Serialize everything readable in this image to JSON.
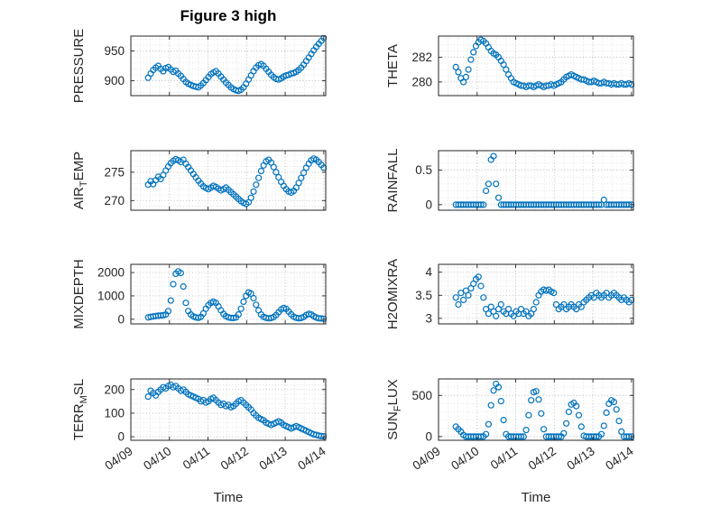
{
  "chart_data": {
    "type": "scatter",
    "title": "Figure 3 high",
    "xlabel": "Time",
    "layout": "4x2 subplots, shared time axis, grid minor on, open-circle markers",
    "marker": {
      "shape": "open-circle",
      "color": "#0072BD"
    },
    "x_unit": "days since 04/09 00:00",
    "xlim": [
      0,
      5.05
    ],
    "x_minor_step": 0.25,
    "xticks": [
      0,
      1,
      2,
      3,
      4,
      5
    ],
    "xtick_labels": [
      "04/09",
      "04/10",
      "04/11",
      "04/12",
      "04/13",
      "04/14"
    ],
    "x": [
      0.45,
      0.515,
      0.58,
      0.645,
      0.71,
      0.775,
      0.84,
      0.905,
      0.97,
      1.035,
      1.1,
      1.165,
      1.23,
      1.295,
      1.36,
      1.425,
      1.49,
      1.555,
      1.62,
      1.685,
      1.75,
      1.815,
      1.88,
      1.945,
      2.01,
      2.075,
      2.14,
      2.205,
      2.27,
      2.335,
      2.4,
      2.465,
      2.53,
      2.595,
      2.66,
      2.725,
      2.79,
      2.855,
      2.92,
      2.985,
      3.05,
      3.115,
      3.18,
      3.245,
      3.31,
      3.375,
      3.44,
      3.505,
      3.57,
      3.635,
      3.7,
      3.765,
      3.83,
      3.895,
      3.96,
      4.025,
      4.09,
      4.155,
      4.22,
      4.285,
      4.35,
      4.415,
      4.48,
      4.545,
      4.61,
      4.675,
      4.74,
      4.805,
      4.87,
      4.935,
      5.0
    ],
    "panels": [
      {
        "name": "PRESSURE",
        "ylabel": "PRESSURE",
        "ylabel_parts": [
          "PRESSURE"
        ],
        "ylim": [
          875,
          975
        ],
        "yticks": [
          900,
          950
        ],
        "ytick_labels": [
          "900",
          "950"
        ],
        "y_minor_step": 10,
        "values": [
          905,
          912,
          918,
          922,
          925,
          920,
          916,
          921,
          923,
          919,
          915,
          917,
          912,
          908,
          903,
          898,
          895,
          893,
          891,
          890,
          889,
          892,
          896,
          901,
          906,
          911,
          914,
          916,
          912,
          907,
          902,
          897,
          893,
          889,
          886,
          884,
          883,
          885,
          889,
          895,
          902,
          909,
          916,
          922,
          926,
          928,
          925,
          920,
          915,
          910,
          906,
          903,
          902,
          904,
          907,
          909,
          910,
          912,
          913,
          915,
          918,
          922,
          927,
          933,
          939,
          945,
          951,
          957,
          962,
          967,
          972
        ]
      },
      {
        "name": "THETA",
        "ylabel": "THETA",
        "ylabel_parts": [
          "THETA"
        ],
        "ylim": [
          278.9,
          283.7
        ],
        "yticks": [
          280,
          282
        ],
        "ytick_labels": [
          "280",
          "282"
        ],
        "y_minor_step": 0.5,
        "values": [
          281.2,
          280.8,
          280.3,
          280.0,
          280.4,
          281.0,
          281.8,
          282.4,
          282.9,
          283.2,
          283.4,
          283.3,
          283.1,
          282.8,
          282.5,
          282.3,
          282.2,
          282.0,
          281.7,
          281.4,
          281.0,
          280.6,
          280.3,
          280.0,
          279.9,
          279.8,
          279.7,
          279.7,
          279.6,
          279.7,
          279.7,
          279.6,
          279.7,
          279.8,
          279.7,
          279.6,
          279.7,
          279.7,
          279.8,
          279.7,
          279.8,
          279.9,
          280.0,
          280.2,
          280.4,
          280.5,
          280.6,
          280.5,
          280.4,
          280.3,
          280.2,
          280.2,
          280.1,
          280.0,
          280.0,
          280.1,
          280.0,
          279.9,
          279.9,
          280.0,
          279.9,
          279.9,
          279.8,
          279.9,
          279.8,
          279.8,
          279.9,
          279.8,
          279.8,
          279.9,
          279.8
        ]
      },
      {
        "name": "AIR_TEMP",
        "ylabel": "AIR_TEMP",
        "ylabel_parts": [
          "AIR",
          "_T",
          "EMP"
        ],
        "ylim": [
          268.3,
          278.8
        ],
        "yticks": [
          270,
          275
        ],
        "ytick_labels": [
          "270",
          "275"
        ],
        "y_minor_step": 1,
        "values": [
          272.8,
          273.4,
          272.9,
          273.6,
          274.2,
          273.8,
          274.5,
          275.3,
          276.0,
          276.6,
          277.0,
          277.3,
          277.1,
          276.8,
          277.2,
          276.5,
          275.9,
          275.3,
          274.7,
          274.1,
          273.5,
          273.0,
          272.5,
          272.2,
          272.0,
          272.3,
          272.6,
          272.4,
          272.1,
          271.8,
          272.0,
          272.3,
          271.9,
          271.5,
          271.1,
          270.7,
          270.3,
          269.9,
          269.6,
          269.4,
          269.7,
          270.5,
          271.6,
          272.8,
          274.0,
          275.2,
          276.2,
          276.9,
          277.2,
          276.7,
          275.9,
          275.0,
          274.1,
          273.3,
          272.6,
          272.0,
          271.6,
          271.4,
          271.7,
          272.3,
          273.1,
          274.0,
          274.9,
          275.8,
          276.5,
          277.1,
          277.4,
          277.2,
          276.8,
          276.3,
          275.8
        ]
      },
      {
        "name": "RAINFALL",
        "ylabel": "RAINFALL",
        "ylabel_parts": [
          "RAINFALL"
        ],
        "ylim": [
          -0.08,
          0.78
        ],
        "yticks": [
          0,
          0.5
        ],
        "ytick_labels": [
          "0",
          "0.5"
        ],
        "y_minor_step": 0.1,
        "values": [
          0,
          0,
          0,
          0,
          0,
          0,
          0,
          0,
          0,
          0,
          0,
          0,
          0.2,
          0.3,
          0.65,
          0.7,
          0.3,
          0.1,
          0,
          0,
          0,
          0,
          0,
          0,
          0,
          0,
          0,
          0,
          0,
          0,
          0,
          0,
          0,
          0,
          0,
          0,
          0,
          0,
          0,
          0,
          0,
          0,
          0,
          0,
          0,
          0,
          0,
          0,
          0,
          0,
          0,
          0,
          0,
          0,
          0,
          0,
          0,
          0,
          0,
          0.07,
          0,
          0,
          0,
          0,
          0,
          0,
          0,
          0,
          0,
          0,
          0
        ]
      },
      {
        "name": "MIXDEPTH",
        "ylabel": "MIXDEPTH",
        "ylabel_parts": [
          "MIXDEPTH"
        ],
        "ylim": [
          -200,
          2350
        ],
        "yticks": [
          0,
          1000,
          2000
        ],
        "ytick_labels": [
          "0",
          "1000",
          "2000"
        ],
        "y_minor_step": 200,
        "values": [
          80,
          100,
          120,
          140,
          150,
          160,
          170,
          200,
          350,
          800,
          1500,
          1950,
          2050,
          1980,
          1400,
          700,
          350,
          200,
          120,
          80,
          60,
          100,
          250,
          450,
          600,
          700,
          750,
          700,
          550,
          380,
          230,
          130,
          80,
          60,
          50,
          80,
          200,
          450,
          750,
          1000,
          1150,
          1100,
          900,
          620,
          380,
          200,
          100,
          60,
          40,
          50,
          90,
          180,
          300,
          420,
          480,
          440,
          330,
          210,
          110,
          60,
          40,
          50,
          100,
          180,
          230,
          200,
          130,
          70,
          40,
          30,
          20
        ]
      },
      {
        "name": "H2OMIXRA",
        "ylabel": "H2OMIXRA",
        "ylabel_parts": [
          "H2OMIXRA"
        ],
        "ylim": [
          2.88,
          4.17
        ],
        "yticks": [
          3,
          3.5,
          4
        ],
        "ytick_labels": [
          "3",
          "3.5",
          "4"
        ],
        "y_minor_step": 0.1,
        "values": [
          3.45,
          3.3,
          3.55,
          3.4,
          3.6,
          3.5,
          3.65,
          3.75,
          3.85,
          3.9,
          3.7,
          3.45,
          3.2,
          3.1,
          3.25,
          3.15,
          3.05,
          3.2,
          3.3,
          3.15,
          3.1,
          3.2,
          3.1,
          3.05,
          3.15,
          3.1,
          3.2,
          3.1,
          3.15,
          3.05,
          3.1,
          3.2,
          3.35,
          3.5,
          3.58,
          3.62,
          3.6,
          3.62,
          3.58,
          3.55,
          3.3,
          3.2,
          3.25,
          3.3,
          3.2,
          3.25,
          3.3,
          3.25,
          3.2,
          3.3,
          3.25,
          3.35,
          3.4,
          3.45,
          3.5,
          3.45,
          3.55,
          3.5,
          3.45,
          3.5,
          3.55,
          3.45,
          3.5,
          3.55,
          3.5,
          3.45,
          3.4,
          3.45,
          3.4,
          3.35,
          3.4
        ]
      },
      {
        "name": "TERR_MSL",
        "ylabel": "TERR_MSL",
        "ylabel_parts": [
          "TERR",
          "_M",
          "SL"
        ],
        "ylim": [
          -15,
          245
        ],
        "yticks": [
          0,
          100,
          200
        ],
        "ytick_labels": [
          "0",
          "100",
          "200"
        ],
        "y_minor_step": 20,
        "values": [
          170,
          195,
          185,
          175,
          190,
          200,
          210,
          205,
          215,
          220,
          210,
          215,
          205,
          195,
          200,
          190,
          180,
          175,
          170,
          165,
          160,
          150,
          155,
          145,
          150,
          160,
          165,
          155,
          145,
          135,
          140,
          130,
          135,
          125,
          130,
          140,
          150,
          155,
          145,
          135,
          125,
          115,
          100,
          90,
          80,
          75,
          70,
          60,
          55,
          50,
          55,
          60,
          65,
          60,
          50,
          45,
          40,
          35,
          40,
          45,
          40,
          35,
          30,
          25,
          20,
          15,
          10,
          8,
          5,
          3,
          2
        ]
      },
      {
        "name": "SUN_FLUX",
        "ylabel": "SUN_FLUX",
        "ylabel_parts": [
          "SUN",
          "_F",
          "LUX"
        ],
        "ylim": [
          -45,
          700
        ],
        "yticks": [
          0,
          500
        ],
        "ytick_labels": [
          "0",
          "500"
        ],
        "y_minor_step": 100,
        "values": [
          120,
          90,
          60,
          20,
          0,
          0,
          0,
          0,
          0,
          0,
          0,
          0,
          30,
          150,
          380,
          560,
          640,
          600,
          430,
          200,
          30,
          0,
          0,
          0,
          0,
          0,
          0,
          0,
          80,
          260,
          440,
          540,
          550,
          450,
          280,
          90,
          0,
          0,
          0,
          0,
          0,
          0,
          0,
          40,
          160,
          300,
          390,
          410,
          370,
          260,
          120,
          10,
          0,
          0,
          0,
          0,
          0,
          0,
          30,
          130,
          290,
          400,
          440,
          420,
          330,
          190,
          60,
          0,
          0,
          0,
          0
        ]
      }
    ]
  }
}
